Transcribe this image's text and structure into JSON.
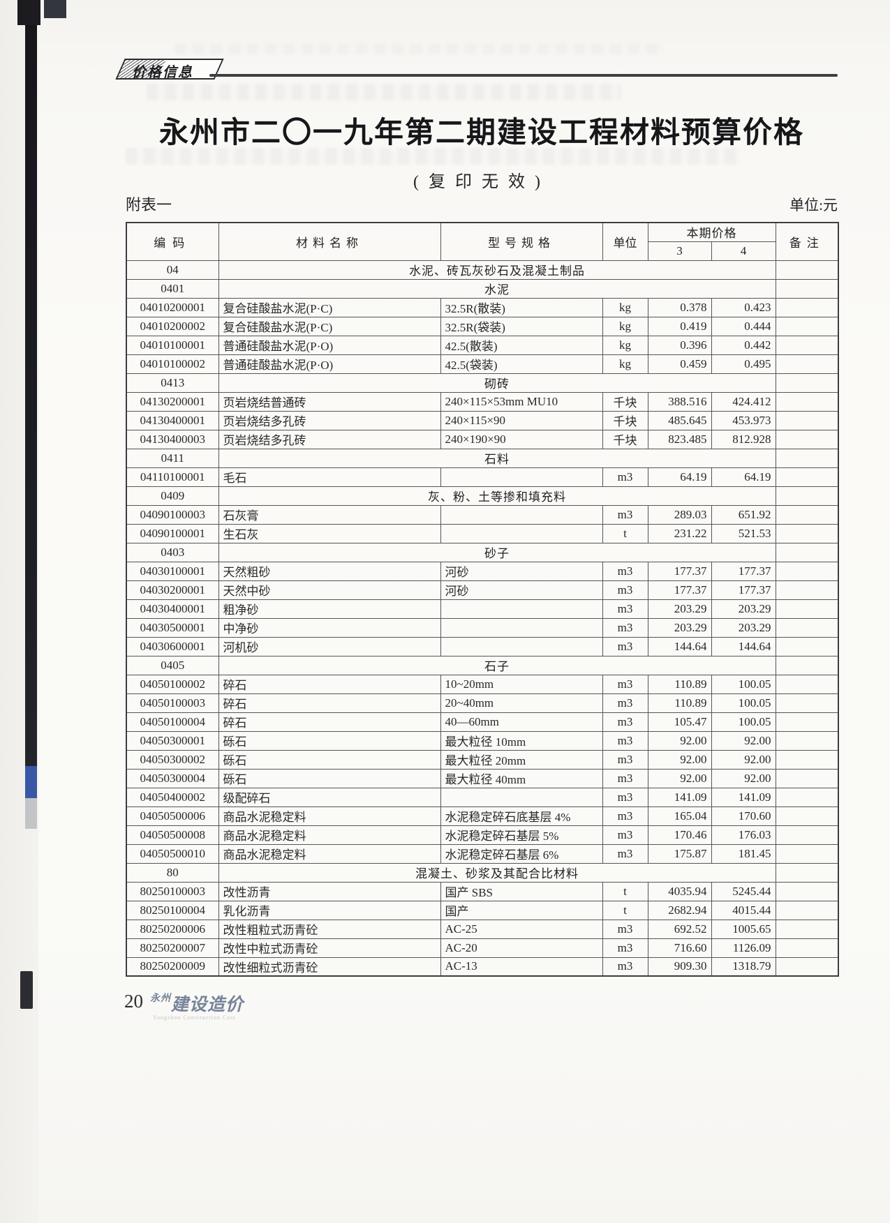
{
  "page": {
    "badge_label": "价格信息",
    "title": "永州市二〇一九年第二期建设工程材料预算价格",
    "subtitle": "(复印无效)",
    "appendix_label": "附表一",
    "unit_note": "单位:元",
    "page_number": "20",
    "logo_prefix": "永州",
    "logo_main": "建设造价",
    "logo_sub": "Yongzhou Construction Cost"
  },
  "table": {
    "header": {
      "code": "编码",
      "name": "材料名称",
      "spec": "型号规格",
      "unit": "单位",
      "price_group": "本期价格",
      "col3": "3",
      "col4": "4",
      "remark": "备注"
    },
    "rows": [
      {
        "type": "section",
        "code": "04",
        "title": "水泥、砖瓦灰砂石及混凝土制品"
      },
      {
        "type": "section",
        "code": "0401",
        "title": "水泥"
      },
      {
        "type": "item",
        "code": "04010200001",
        "name": "复合硅酸盐水泥(P·C)",
        "spec": "32.5R(散装)",
        "unit": "kg",
        "p3": "0.378",
        "p4": "0.423",
        "remark": ""
      },
      {
        "type": "item",
        "code": "04010200002",
        "name": "复合硅酸盐水泥(P·C)",
        "spec": "32.5R(袋装)",
        "unit": "kg",
        "p3": "0.419",
        "p4": "0.444",
        "remark": ""
      },
      {
        "type": "item",
        "code": "04010100001",
        "name": "普通硅酸盐水泥(P·O)",
        "spec": "42.5(散装)",
        "unit": "kg",
        "p3": "0.396",
        "p4": "0.442",
        "remark": ""
      },
      {
        "type": "item",
        "code": "04010100002",
        "name": "普通硅酸盐水泥(P·O)",
        "spec": "42.5(袋装)",
        "unit": "kg",
        "p3": "0.459",
        "p4": "0.495",
        "remark": ""
      },
      {
        "type": "section",
        "code": "0413",
        "title": "砌砖"
      },
      {
        "type": "item",
        "code": "04130200001",
        "name": "页岩烧结普通砖",
        "spec": "240×115×53mm MU10",
        "unit": "千块",
        "p3": "388.516",
        "p4": "424.412",
        "remark": ""
      },
      {
        "type": "item",
        "code": "04130400001",
        "name": "页岩烧结多孔砖",
        "spec": "240×115×90",
        "unit": "千块",
        "p3": "485.645",
        "p4": "453.973",
        "remark": ""
      },
      {
        "type": "item",
        "code": "04130400003",
        "name": "页岩烧结多孔砖",
        "spec": "240×190×90",
        "unit": "千块",
        "p3": "823.485",
        "p4": "812.928",
        "remark": ""
      },
      {
        "type": "section",
        "code": "0411",
        "title": "石料"
      },
      {
        "type": "item",
        "code": "04110100001",
        "name": "毛石",
        "spec": "",
        "unit": "m3",
        "p3": "64.19",
        "p4": "64.19",
        "remark": ""
      },
      {
        "type": "section",
        "code": "0409",
        "title": "灰、粉、土等掺和填充料"
      },
      {
        "type": "item",
        "code": "04090100003",
        "name": "石灰膏",
        "spec": "",
        "unit": "m3",
        "p3": "289.03",
        "p4": "651.92",
        "remark": ""
      },
      {
        "type": "item",
        "code": "04090100001",
        "name": "生石灰",
        "spec": "",
        "unit": "t",
        "p3": "231.22",
        "p4": "521.53",
        "remark": ""
      },
      {
        "type": "section",
        "code": "0403",
        "title": "砂子"
      },
      {
        "type": "item",
        "code": "04030100001",
        "name": "天然粗砂",
        "spec": "河砂",
        "unit": "m3",
        "p3": "177.37",
        "p4": "177.37",
        "remark": ""
      },
      {
        "type": "item",
        "code": "04030200001",
        "name": "天然中砂",
        "spec": "河砂",
        "unit": "m3",
        "p3": "177.37",
        "p4": "177.37",
        "remark": ""
      },
      {
        "type": "item",
        "code": "04030400001",
        "name": "粗净砂",
        "spec": "",
        "unit": "m3",
        "p3": "203.29",
        "p4": "203.29",
        "remark": ""
      },
      {
        "type": "item",
        "code": "04030500001",
        "name": "中净砂",
        "spec": "",
        "unit": "m3",
        "p3": "203.29",
        "p4": "203.29",
        "remark": ""
      },
      {
        "type": "item",
        "code": "04030600001",
        "name": "河机砂",
        "spec": "",
        "unit": "m3",
        "p3": "144.64",
        "p4": "144.64",
        "remark": ""
      },
      {
        "type": "section",
        "code": "0405",
        "title": "石子"
      },
      {
        "type": "item",
        "code": "04050100002",
        "name": "碎石",
        "spec": "10~20mm",
        "unit": "m3",
        "p3": "110.89",
        "p4": "100.05",
        "remark": ""
      },
      {
        "type": "item",
        "code": "04050100003",
        "name": "碎石",
        "spec": "20~40mm",
        "unit": "m3",
        "p3": "110.89",
        "p4": "100.05",
        "remark": ""
      },
      {
        "type": "item",
        "code": "04050100004",
        "name": "碎石",
        "spec": "40—60mm",
        "unit": "m3",
        "p3": "105.47",
        "p4": "100.05",
        "remark": ""
      },
      {
        "type": "item",
        "code": "04050300001",
        "name": "砾石",
        "spec": "最大粒径 10mm",
        "unit": "m3",
        "p3": "92.00",
        "p4": "92.00",
        "remark": ""
      },
      {
        "type": "item",
        "code": "04050300002",
        "name": "砾石",
        "spec": "最大粒径 20mm",
        "unit": "m3",
        "p3": "92.00",
        "p4": "92.00",
        "remark": ""
      },
      {
        "type": "item",
        "code": "04050300004",
        "name": "砾石",
        "spec": "最大粒径 40mm",
        "unit": "m3",
        "p3": "92.00",
        "p4": "92.00",
        "remark": ""
      },
      {
        "type": "item",
        "code": "04050400002",
        "name": "级配碎石",
        "spec": "",
        "unit": "m3",
        "p3": "141.09",
        "p4": "141.09",
        "remark": ""
      },
      {
        "type": "item",
        "code": "04050500006",
        "name": "商品水泥稳定料",
        "spec": "水泥稳定碎石底基层 4%",
        "unit": "m3",
        "p3": "165.04",
        "p4": "170.60",
        "remark": ""
      },
      {
        "type": "item",
        "code": "04050500008",
        "name": "商品水泥稳定料",
        "spec": "水泥稳定碎石基层 5%",
        "unit": "m3",
        "p3": "170.46",
        "p4": "176.03",
        "remark": ""
      },
      {
        "type": "item",
        "code": "04050500010",
        "name": "商品水泥稳定料",
        "spec": "水泥稳定碎石基层 6%",
        "unit": "m3",
        "p3": "175.87",
        "p4": "181.45",
        "remark": ""
      },
      {
        "type": "section",
        "code": "80",
        "title": "混凝土、砂浆及其配合比材料"
      },
      {
        "type": "item",
        "code": "80250100003",
        "name": "改性沥青",
        "spec": "国产 SBS",
        "unit": "t",
        "p3": "4035.94",
        "p4": "5245.44",
        "remark": ""
      },
      {
        "type": "item",
        "code": "80250100004",
        "name": "乳化沥青",
        "spec": "国产",
        "unit": "t",
        "p3": "2682.94",
        "p4": "4015.44",
        "remark": ""
      },
      {
        "type": "item",
        "code": "80250200006",
        "name": "改性粗粒式沥青砼",
        "spec": "AC-25",
        "unit": "m3",
        "p3": "692.52",
        "p4": "1005.65",
        "remark": ""
      },
      {
        "type": "item",
        "code": "80250200007",
        "name": "改性中粒式沥青砼",
        "spec": "AC-20",
        "unit": "m3",
        "p3": "716.60",
        "p4": "1126.09",
        "remark": ""
      },
      {
        "type": "item",
        "code": "80250200009",
        "name": "改性细粒式沥青砼",
        "spec": "AC-13",
        "unit": "m3",
        "p3": "909.30",
        "p4": "1318.79",
        "remark": ""
      }
    ]
  }
}
